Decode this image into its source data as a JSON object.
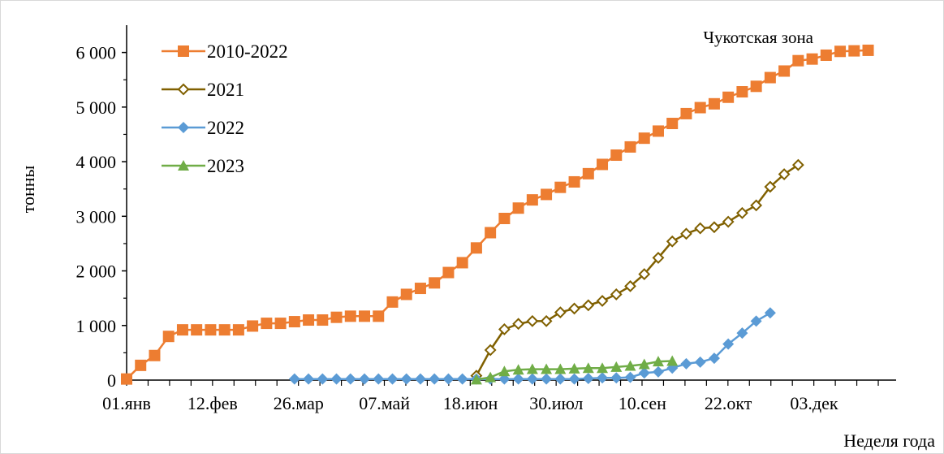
{
  "chart_data": {
    "type": "line",
    "annotation": "Чукотская зона",
    "xlabel": "Неделя года",
    "ylabel": "тонны",
    "ylim": [
      0,
      6500
    ],
    "xlim": [
      1,
      56
    ],
    "yticks": [
      0,
      1000,
      2000,
      3000,
      4000,
      5000,
      6000
    ],
    "ytick_labels": [
      "0",
      "1 000",
      "2 000",
      "3 000",
      "4 000",
      "5 000",
      "6 000"
    ],
    "xticks": [
      1,
      7.14,
      13.29,
      19.43,
      25.57,
      31.71,
      37.86,
      44,
      50.14
    ],
    "xtick_labels": [
      "01.янв",
      "12.фев",
      "26.мар",
      "07.май",
      "18.июн",
      "30.июл",
      "10.сен",
      "22.окт",
      "03.дек"
    ],
    "grid": false,
    "legend_position": "top-left",
    "series": [
      {
        "name": "2010-2022",
        "color": "#ED7D31",
        "marker": "square",
        "x": [
          1,
          2,
          3,
          4,
          5,
          6,
          7,
          8,
          9,
          10,
          11,
          12,
          13,
          14,
          15,
          16,
          17,
          18,
          19,
          20,
          21,
          22,
          23,
          24,
          25,
          26,
          27,
          28,
          29,
          30,
          31,
          32,
          33,
          34,
          35,
          36,
          37,
          38,
          39,
          40,
          41,
          42,
          43,
          44,
          45,
          46,
          47,
          48,
          49,
          50,
          51,
          52,
          53,
          54
        ],
        "y": [
          20,
          270,
          450,
          800,
          920,
          920,
          920,
          920,
          920,
          990,
          1040,
          1040,
          1070,
          1100,
          1100,
          1150,
          1170,
          1170,
          1170,
          1430,
          1570,
          1680,
          1780,
          1970,
          2150,
          2420,
          2700,
          2960,
          3150,
          3300,
          3400,
          3530,
          3630,
          3780,
          3950,
          4120,
          4270,
          4430,
          4560,
          4700,
          4880,
          4990,
          5060,
          5180,
          5280,
          5380,
          5540,
          5660,
          5850,
          5880,
          5950,
          6020,
          6030,
          6040
        ]
      },
      {
        "name": "2021",
        "color": "#806000",
        "marker": "diamond-open",
        "x": [
          26,
          27,
          28,
          29,
          30,
          31,
          32,
          33,
          34,
          35,
          36,
          37,
          38,
          39,
          40,
          41,
          42,
          43,
          44,
          45,
          46,
          47,
          48,
          49
        ],
        "y": [
          80,
          550,
          930,
          1030,
          1080,
          1080,
          1240,
          1310,
          1370,
          1450,
          1570,
          1720,
          1940,
          2240,
          2540,
          2680,
          2780,
          2800,
          2900,
          3060,
          3200,
          3540,
          3770,
          3940
        ]
      },
      {
        "name": "2022",
        "color": "#5B9BD5",
        "marker": "diamond",
        "x": [
          13,
          14,
          15,
          16,
          17,
          18,
          19,
          20,
          21,
          22,
          23,
          24,
          25,
          26,
          27,
          28,
          29,
          30,
          31,
          32,
          33,
          34,
          35,
          36,
          37,
          38,
          39,
          40,
          41,
          42,
          43,
          44,
          45,
          46,
          47
        ],
        "y": [
          20,
          20,
          20,
          20,
          20,
          20,
          20,
          20,
          20,
          20,
          20,
          20,
          20,
          20,
          20,
          20,
          20,
          20,
          20,
          20,
          20,
          30,
          40,
          40,
          50,
          130,
          150,
          220,
          300,
          330,
          400,
          660,
          860,
          1080,
          1230
        ]
      },
      {
        "name": "2023",
        "color": "#70AD47",
        "marker": "triangle",
        "x": [
          26,
          27,
          28,
          29,
          30,
          31,
          32,
          33,
          34,
          35,
          36,
          37,
          38,
          39,
          40
        ],
        "y": [
          10,
          50,
          160,
          190,
          200,
          200,
          200,
          210,
          220,
          220,
          240,
          260,
          290,
          340,
          350
        ]
      }
    ]
  }
}
